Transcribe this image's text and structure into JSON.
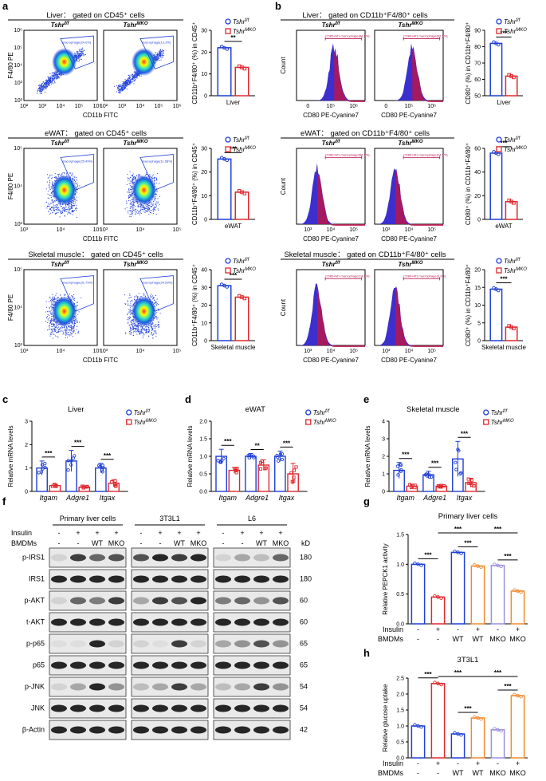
{
  "figure": {
    "panel_labels": [
      "a",
      "b",
      "c",
      "d",
      "e",
      "f",
      "g",
      "h"
    ],
    "colors": {
      "ctrl": "#1f3fd6",
      "mko": "#e0282e",
      "orange": "#f28a2e",
      "violet": "#9a90e0",
      "blood": "#b8154b"
    },
    "legend": {
      "ctrl": "Tshr",
      "ctrl_sup": "f/f",
      "mko": "Tshr",
      "mko_sup": "MKO"
    },
    "panel_a": {
      "rows": [
        {
          "title": "Liver： gated on CD45⁺ cells",
          "gate_label": "macrophage(24.0%)",
          "gate_label_mko": "macrophage(13.3%)",
          "xlabel": "CD11b FITC",
          "ylabel": "F4/80 PE",
          "xticks": [
            "10²",
            "10³",
            "10⁴",
            "10⁵",
            "10⁶"
          ],
          "yticks": [
            "10²",
            "10³",
            "10⁴",
            "10⁵",
            "10⁶"
          ],
          "bar_ylabel": "CD11b⁺F4/80⁺ (%) in CD45⁺",
          "bar_xlabel": "Liver",
          "bar_yticks": [
            "0",
            "10",
            "20",
            "30"
          ],
          "sig": "**",
          "ctrl_value": 22,
          "mko_value": 13,
          "ymax": 30
        },
        {
          "title": "eWAT： gated on CD45⁺ cells",
          "gate_label": "macrophage(25.49%)",
          "gate_label_mko": "macrophage(11.58%)",
          "xlabel": "CD11b FITC",
          "ylabel": "F4/80 PE",
          "xticks": [
            "10³",
            "10⁴",
            "10⁵"
          ],
          "yticks": [
            "10³",
            "10⁴",
            "10⁵"
          ],
          "bar_ylabel": "CD11b⁺F4/80⁺ (%) in CD45⁺",
          "bar_xlabel": "eWAT",
          "bar_yticks": [
            "0",
            "10",
            "20",
            "30"
          ],
          "sig": "***",
          "ctrl_value": 25.5,
          "mko_value": 11.5,
          "ymax": 30
        },
        {
          "title": "Skeletal muscle： gated on CD45⁺ cells",
          "gate_label": "macrophage(31.79%)",
          "gate_label_mko": "macrophage(24.59%)",
          "xlabel": "CD11b FITC",
          "ylabel": "F4/80 PE",
          "xticks": [
            "10³",
            "10⁴",
            "10⁵"
          ],
          "yticks": [
            "10³",
            "10⁴",
            "10⁵"
          ],
          "bar_ylabel": "CD11b⁺F4/80⁺ (%) in CD45⁺",
          "bar_xlabel": "Skeletal muscle",
          "bar_yticks": [
            "0",
            "10",
            "20",
            "30",
            "40"
          ],
          "sig": "***",
          "ctrl_value": 31,
          "mko_value": 24.5,
          "ymax": 40
        }
      ]
    },
    "panel_b": {
      "rows": [
        {
          "title": "Liver： gated on CD11b⁺F4/80⁺ cells",
          "gate_label": "CD80+M1 macrophage(84.2%)",
          "gate_label_mko": "CD80+M1 macrophage(62.3%)",
          "xlabel": "CD80 PE-Cyanine7",
          "ylabel": "Count",
          "xticks": [
            "0",
            "10⁵",
            "10⁶"
          ],
          "bar_ylabel": "CD80⁺ (%) in CD11b⁺F4/80⁺",
          "bar_xlabel": "Liver",
          "bar_yticks": [
            "50",
            "60",
            "70",
            "80",
            "90"
          ],
          "sig": "***",
          "ctrl_value": 82,
          "mko_value": 62,
          "ymin": 50,
          "ymax": 90
        },
        {
          "title": "eWAT： gated on CD11b⁺F4/80⁺ cells",
          "gate_label": "CD80+M1 macrophage(56.3%)",
          "gate_label_mko": "CD80+M1 macrophage(14.3%)",
          "xlabel": "CD80 PE-Cyanine7",
          "ylabel": "Count",
          "xticks": [
            "10³",
            "10⁴",
            "10⁵"
          ],
          "bar_ylabel": "CD80⁺ (%) in CD11b⁺F4/80⁺",
          "bar_xlabel": "eWAT",
          "bar_yticks": [
            "0",
            "20",
            "40",
            "60"
          ],
          "sig": "***",
          "ctrl_value": 56,
          "mko_value": 15,
          "ymin": 0,
          "ymax": 60
        },
        {
          "title": "Skeletal muscle： gated on CD11b⁺F4/80⁺ cells",
          "gate_label": "CD80+M1 macrophage(14.8%)",
          "gate_label_mko": "CD80+M1 macrophage(3.9%)",
          "xlabel": "CD80 PE-Cyanine7",
          "ylabel": "Count",
          "xticks": [
            "10³",
            "10⁴",
            "10⁵"
          ],
          "bar_ylabel": "CD80⁺ (%) in CD11b⁺F4/80⁺",
          "bar_xlabel": "Skeletal muscle",
          "bar_yticks": [
            "0",
            "5",
            "10",
            "15",
            "20"
          ],
          "sig": "***",
          "ctrl_value": 14.5,
          "mko_value": 3.8,
          "ymin": 0,
          "ymax": 20
        }
      ]
    },
    "panel_cde": [
      {
        "title": "Liver",
        "ylabel": "Relative mRNA levels",
        "yticks": [
          "0",
          "1",
          "2",
          "3"
        ],
        "ymax": 3,
        "genes": [
          "Itgam",
          "Adgre1",
          "Itgax"
        ],
        "ctrl": [
          1.0,
          1.3,
          1.0
        ],
        "ctrl_err": [
          0.3,
          0.45,
          0.2
        ],
        "mko": [
          0.25,
          0.18,
          0.35
        ],
        "mko_err": [
          0.08,
          0.05,
          0.15
        ],
        "sig": [
          "***",
          "***",
          "***"
        ]
      },
      {
        "title": "eWAT",
        "ylabel": "Relative mRNA levels",
        "yticks": [
          "0.0",
          "0.5",
          "1.0",
          "1.5",
          "2.0"
        ],
        "ymax": 2,
        "genes": [
          "Itgam",
          "Adgre1",
          "Itgax"
        ],
        "ctrl": [
          1.0,
          1.0,
          1.0
        ],
        "ctrl_err": [
          0.2,
          0.08,
          0.15
        ],
        "mko": [
          0.6,
          0.75,
          0.5
        ],
        "mko_err": [
          0.08,
          0.15,
          0.3
        ],
        "sig": [
          "***",
          "**",
          "***"
        ]
      },
      {
        "title": "Skeletal muscle",
        "ylabel": "Relative mRNA levels",
        "yticks": [
          "0",
          "1",
          "2",
          "3",
          "4"
        ],
        "ymax": 4,
        "genes": [
          "Itgam",
          "Adgre1",
          "Itgax"
        ],
        "ctrl": [
          1.2,
          0.95,
          1.85
        ],
        "ctrl_err": [
          0.45,
          0.2,
          1.0
        ],
        "mko": [
          0.3,
          0.3,
          0.5
        ],
        "mko_err": [
          0.1,
          0.1,
          0.25
        ],
        "sig": [
          "***",
          "***",
          "***"
        ]
      }
    ],
    "panel_f": {
      "groups": [
        "Primary liver cells",
        "3T3L1",
        "L6"
      ],
      "insulin_row": "Insulin",
      "bmdm_row": "BMDMs",
      "insulin": [
        "-",
        "+",
        "+",
        "+"
      ],
      "bmdm": [
        "-",
        "-",
        "WT",
        "MKO"
      ],
      "kd_label": "kD",
      "proteins": [
        {
          "name": "p-IRS1",
          "kd": "180"
        },
        {
          "name": "IRS1",
          "kd": "180"
        },
        {
          "name": "p-AKT",
          "kd": "60"
        },
        {
          "name": "t-AKT",
          "kd": "60"
        },
        {
          "name": "p-p65",
          "kd": "65"
        },
        {
          "name": "p65",
          "kd": "65"
        },
        {
          "name": "p-JNK",
          "kd": "54"
        },
        {
          "name": "JNK",
          "kd": "54"
        },
        {
          "name": "β-Actin",
          "kd": "42"
        }
      ]
    },
    "panel_g": {
      "title": "Primary liver cells",
      "ylabel": "Relative PEPCK1 activity",
      "yticks": [
        "0.0",
        "0.5",
        "1.0",
        "1.5"
      ],
      "ymax": 1.5,
      "values": [
        1.0,
        0.45,
        1.2,
        0.97,
        0.98,
        0.55
      ],
      "insulin": [
        "-",
        "+",
        "-",
        "+",
        "-",
        "+"
      ],
      "bmdm": [
        "-",
        "-",
        "WT",
        "WT",
        "MKO",
        "MKO"
      ],
      "sig_pairs": [
        "***",
        "***",
        "***",
        "***",
        "***"
      ]
    },
    "panel_h": {
      "title": "3T3L1",
      "ylabel": "Relative glucose uptake",
      "yticks": [
        "0.0",
        "0.5",
        "1.0",
        "1.5",
        "2.0",
        "2.5"
      ],
      "ymax": 2.5,
      "values": [
        1.0,
        2.33,
        0.75,
        1.25,
        0.88,
        1.95
      ],
      "insulin": [
        "-",
        "+",
        "-",
        "+",
        "-",
        "+"
      ],
      "bmdm": [
        "-",
        "-",
        "WT",
        "WT",
        "MKO",
        "MKO"
      ],
      "sig_pairs": [
        "***",
        "***",
        "***",
        "***",
        "***"
      ]
    }
  }
}
